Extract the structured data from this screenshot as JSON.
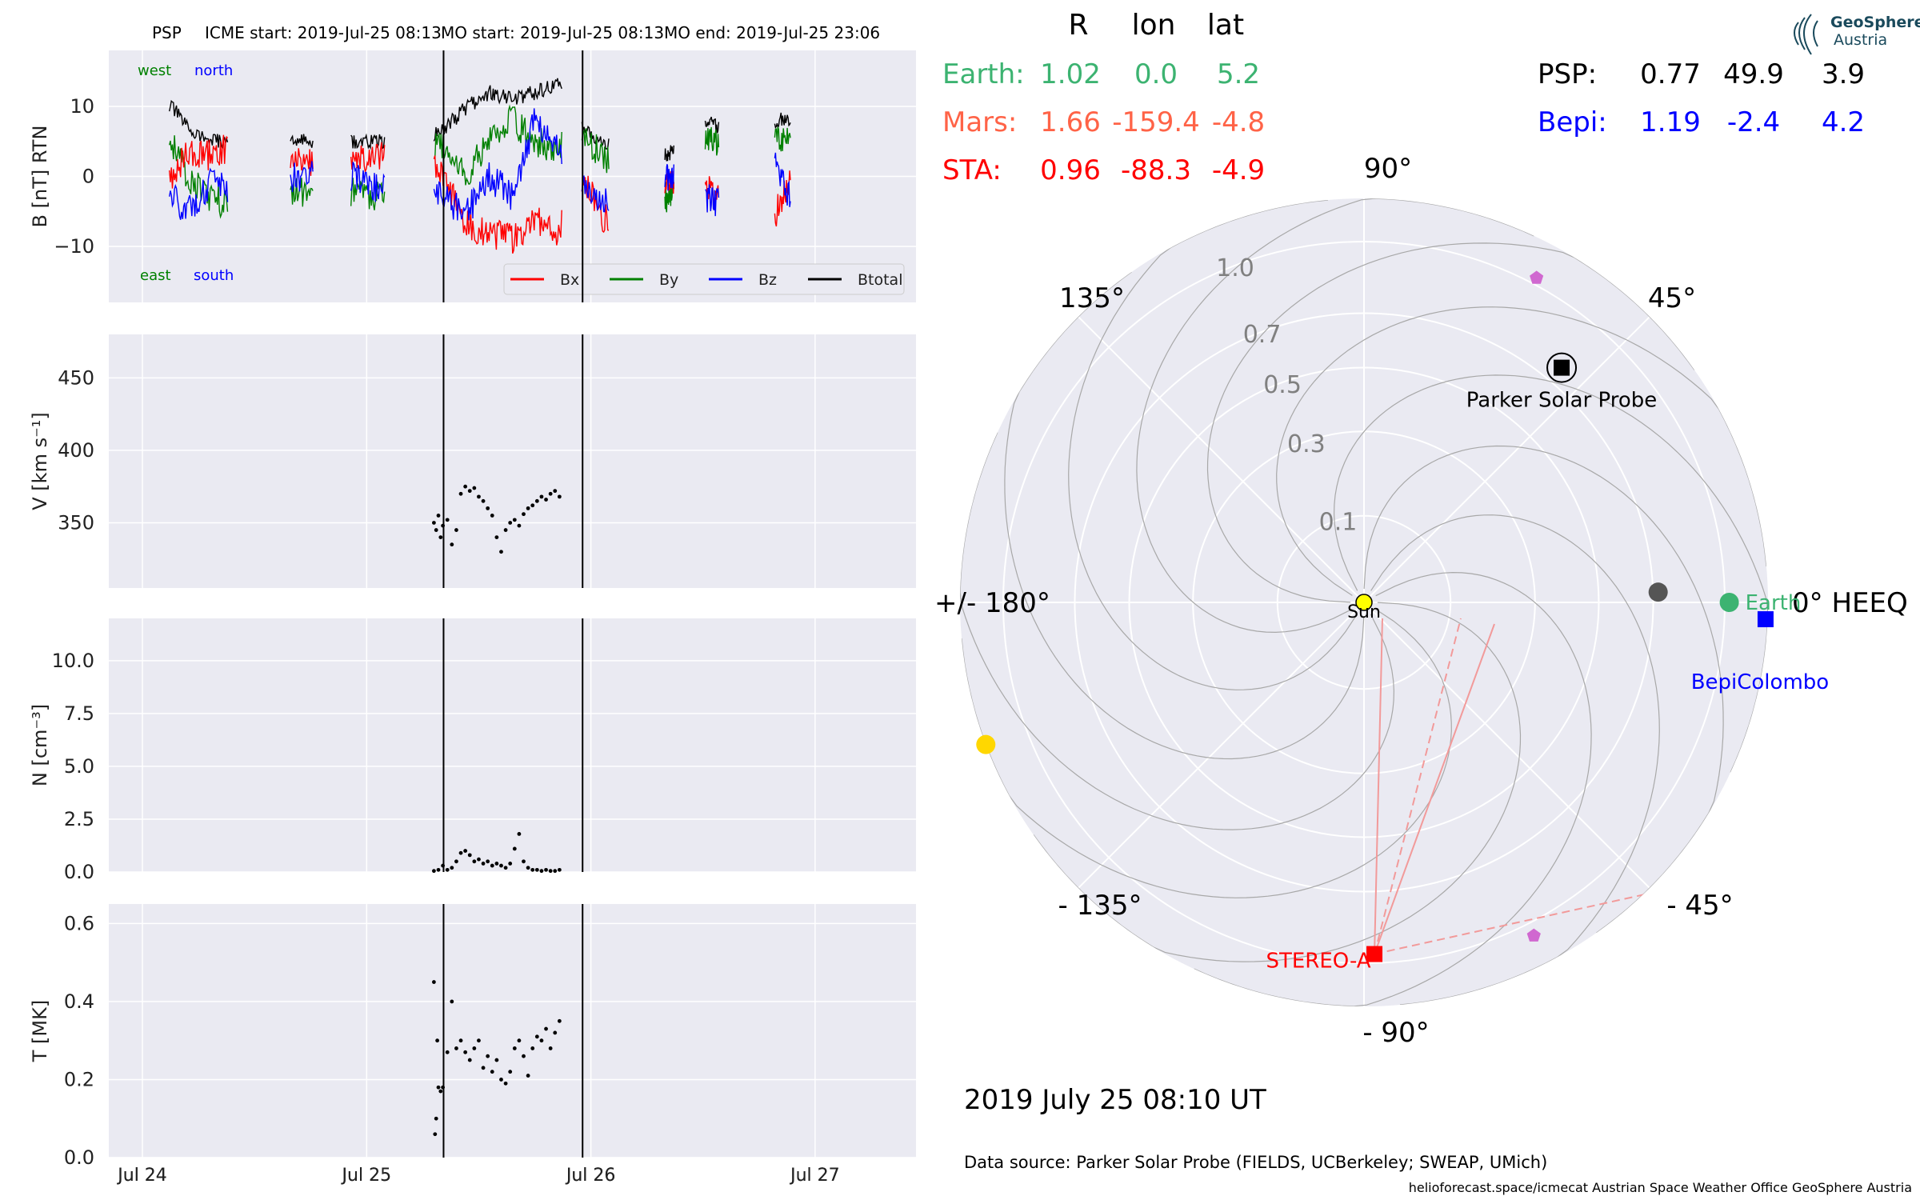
{
  "header": {
    "spacecraft": "PSP",
    "icme_start": "ICME start: 2019-Jul-25 08:13",
    "mo_start": "MO start: 2019-Jul-25 08:13",
    "mo_end": "MO end: 2019-Jul-25 23:06"
  },
  "logo": {
    "line1": "GeoSphere",
    "line2": "Austria"
  },
  "footer": {
    "date_label": "2019 July 25  08:10 UT",
    "data_source": "Data source: Parker Solar Probe (FIELDS, UCBerkeley; SWEAP, UMich)",
    "credits": "helioforecast.space/icmecat   Austrian Space Weather Office   GeoSphere Austria"
  },
  "positions_table": {
    "headers": [
      "R",
      "lon",
      "lat"
    ],
    "rows": [
      {
        "name": "Earth:",
        "R": "1.02",
        "lon": "0.0",
        "lat": "5.2",
        "color": "#3cb371"
      },
      {
        "name": "Mars:",
        "R": "1.66",
        "lon": "-159.4",
        "lat": "-4.8",
        "color": "#ff6347"
      },
      {
        "name": "STA:",
        "R": "0.96",
        "lon": "-88.3",
        "lat": "-4.9",
        "color": "#ff0000"
      },
      {
        "name": "PSP:",
        "R": "0.77",
        "lon": "49.9",
        "lat": "3.9",
        "color": "#000000"
      },
      {
        "name": "Bepi:",
        "R": "1.19",
        "lon": "-2.4",
        "lat": "4.2",
        "color": "#0000ff"
      }
    ]
  },
  "chart_data": [
    {
      "type": "line",
      "ylabel": "B [nT] RTN",
      "ylim": [
        -18,
        18
      ],
      "yticks": [
        -10,
        0,
        10
      ],
      "xlim": [
        -0.15,
        3.45
      ],
      "xticks": [
        0,
        1,
        2,
        3
      ],
      "xtick_labels": [
        "Jul 24",
        "Jul 25",
        "Jul 26",
        "Jul 27"
      ],
      "annotations": {
        "top_left": "west",
        "top_right": "north",
        "bottom_left": "east",
        "bottom_right": "south"
      },
      "event_lines_days": [
        1.343,
        1.963
      ],
      "legend": [
        "Bx",
        "By",
        "Bz",
        "Btotal"
      ],
      "series_colors": [
        "#ff0000",
        "#008000",
        "#0000ff",
        "#000000"
      ],
      "data_segments_days": [
        [
          0.12,
          0.38
        ],
        [
          0.66,
          0.76
        ],
        [
          0.93,
          1.08
        ],
        [
          1.3,
          1.87
        ],
        [
          1.96,
          2.08
        ],
        [
          2.33,
          2.37
        ],
        [
          2.51,
          2.57
        ],
        [
          2.82,
          2.89
        ]
      ],
      "series": [
        {
          "name": "Btotal",
          "x": [
            0.13,
            0.2,
            0.3,
            0.38,
            0.68,
            0.75,
            0.95,
            1.05,
            1.32,
            1.45,
            1.55,
            1.65,
            1.75,
            1.85,
            1.97,
            2.05,
            2.34,
            2.52,
            2.56,
            2.83,
            2.88
          ],
          "y": [
            10,
            7,
            5,
            5,
            5,
            5,
            5,
            5,
            6,
            10,
            12,
            11,
            12,
            13,
            7,
            5,
            3,
            8,
            7,
            8,
            8
          ]
        },
        {
          "name": "Bx",
          "x": [
            0.13,
            0.2,
            0.3,
            0.38,
            0.68,
            0.75,
            0.95,
            1.05,
            1.32,
            1.45,
            1.55,
            1.65,
            1.75,
            1.85,
            1.97,
            2.05,
            2.34,
            2.52,
            2.56,
            2.83,
            2.88
          ],
          "y": [
            0,
            3,
            3,
            4,
            3,
            2,
            2,
            3,
            1,
            -7,
            -8,
            -9,
            -6,
            -8,
            0,
            -6,
            -1,
            -2,
            -3,
            -5,
            -1
          ]
        },
        {
          "name": "By",
          "x": [
            0.13,
            0.2,
            0.3,
            0.38,
            0.68,
            0.75,
            0.95,
            1.05,
            1.32,
            1.45,
            1.55,
            1.65,
            1.75,
            1.85,
            1.97,
            2.05,
            2.34,
            2.52,
            2.56,
            2.83,
            2.88
          ],
          "y": [
            5,
            0,
            -3,
            -4,
            -2,
            -3,
            -2,
            -3,
            5,
            0,
            6,
            8,
            5,
            4,
            6,
            3,
            -3,
            6,
            5,
            5,
            6
          ]
        },
        {
          "name": "Bz",
          "x": [
            0.13,
            0.2,
            0.3,
            0.38,
            0.68,
            0.75,
            0.95,
            1.05,
            1.32,
            1.45,
            1.55,
            1.65,
            1.75,
            1.85,
            1.97,
            2.05,
            2.34,
            2.52,
            2.56,
            2.83,
            2.88
          ],
          "y": [
            -3,
            -5,
            -1,
            -2,
            0,
            0,
            0,
            -2,
            -3,
            -5,
            0,
            -3,
            8,
            5,
            -2,
            -3,
            0,
            -3,
            -4,
            2,
            -3
          ]
        }
      ]
    },
    {
      "type": "scatter",
      "ylabel": "V [km s⁻¹]",
      "ylim": [
        305,
        480
      ],
      "yticks": [
        350,
        400,
        450
      ],
      "xlim": [
        -0.15,
        3.45
      ],
      "xticks": [
        0,
        1,
        2,
        3
      ],
      "event_lines_days": [
        1.343,
        1.963
      ],
      "series": [
        {
          "name": "V",
          "x": [
            1.3,
            1.31,
            1.32,
            1.33,
            1.34,
            1.36,
            1.38,
            1.4,
            1.42,
            1.44,
            1.46,
            1.48,
            1.5,
            1.52,
            1.54,
            1.56,
            1.58,
            1.6,
            1.62,
            1.64,
            1.66,
            1.68,
            1.7,
            1.72,
            1.74,
            1.76,
            1.78,
            1.8,
            1.82,
            1.84,
            1.86
          ],
          "y": [
            350,
            345,
            355,
            340,
            348,
            352,
            335,
            345,
            370,
            375,
            372,
            374,
            368,
            365,
            360,
            355,
            340,
            330,
            345,
            350,
            352,
            348,
            356,
            360,
            362,
            365,
            368,
            366,
            370,
            372,
            368
          ]
        }
      ]
    },
    {
      "type": "scatter",
      "ylabel": "N [cm⁻³]",
      "ylim": [
        0,
        12
      ],
      "yticks": [
        0.0,
        2.5,
        5.0,
        7.5,
        10.0
      ],
      "ytick_labels": [
        "0.0",
        "2.5",
        "5.0",
        "7.5",
        "10.0"
      ],
      "xlim": [
        -0.15,
        3.45
      ],
      "xticks": [
        0,
        1,
        2,
        3
      ],
      "event_lines_days": [
        1.343,
        1.963
      ],
      "series": [
        {
          "name": "N",
          "x": [
            1.3,
            1.32,
            1.34,
            1.36,
            1.38,
            1.4,
            1.42,
            1.44,
            1.46,
            1.48,
            1.5,
            1.52,
            1.54,
            1.56,
            1.58,
            1.6,
            1.62,
            1.64,
            1.66,
            1.68,
            1.7,
            1.72,
            1.74,
            1.76,
            1.78,
            1.8,
            1.82,
            1.84,
            1.86
          ],
          "y": [
            0.05,
            0.1,
            0.3,
            0.1,
            0.2,
            0.5,
            0.9,
            1.0,
            0.8,
            0.5,
            0.6,
            0.4,
            0.5,
            0.3,
            0.4,
            0.3,
            0.2,
            0.4,
            1.1,
            1.8,
            0.5,
            0.2,
            0.1,
            0.1,
            0.05,
            0.1,
            0.05,
            0.05,
            0.1
          ]
        }
      ]
    },
    {
      "type": "scatter",
      "ylabel": "T [MK]",
      "ylim": [
        0,
        0.65
      ],
      "yticks": [
        0.0,
        0.2,
        0.4,
        0.6
      ],
      "ytick_labels": [
        "0.0",
        "0.2",
        "0.4",
        "0.6"
      ],
      "xlim": [
        -0.15,
        3.45
      ],
      "xticks": [
        0,
        1,
        2,
        3
      ],
      "xtick_labels": [
        "Jul 24",
        "Jul 25",
        "Jul 26",
        "Jul 27"
      ],
      "event_lines_days": [
        1.343,
        1.963
      ],
      "series": [
        {
          "name": "T",
          "x": [
            1.3,
            1.305,
            1.31,
            1.315,
            1.32,
            1.33,
            1.34,
            1.36,
            1.38,
            1.4,
            1.42,
            1.44,
            1.46,
            1.48,
            1.5,
            1.52,
            1.54,
            1.56,
            1.58,
            1.6,
            1.62,
            1.64,
            1.66,
            1.68,
            1.7,
            1.72,
            1.74,
            1.76,
            1.78,
            1.8,
            1.82,
            1.84,
            1.86
          ],
          "y": [
            0.45,
            0.06,
            0.1,
            0.3,
            0.18,
            0.17,
            0.18,
            0.27,
            0.4,
            0.28,
            0.3,
            0.27,
            0.25,
            0.28,
            0.3,
            0.23,
            0.26,
            0.22,
            0.25,
            0.2,
            0.19,
            0.22,
            0.28,
            0.3,
            0.26,
            0.21,
            0.28,
            0.31,
            0.3,
            0.33,
            0.28,
            0.32,
            0.35
          ]
        }
      ]
    },
    {
      "type": "polar",
      "radial_labels": [
        "0.1",
        "0.3",
        "0.5",
        "0.7",
        "1.0"
      ],
      "angle_labels": [
        "0° HEEQ",
        "45°",
        "90°",
        "135°",
        "+/- 180°",
        "- 135°",
        "- 90°",
        "- 45°"
      ],
      "bodies": [
        {
          "name": "Sun",
          "r": 0.0,
          "lon": 0,
          "color": "#ffff00",
          "marker": "circle",
          "label": "Sun",
          "label_color": "#000000"
        },
        {
          "name": "Earth",
          "r": 1.02,
          "lon": 0.0,
          "color": "#3cb371",
          "marker": "circle",
          "label": "Earth",
          "label_color": "#3cb371"
        },
        {
          "name": "Mars",
          "r": 1.66,
          "lon": -159.4,
          "color": "#ffd700",
          "marker": "circle",
          "label": "",
          "label_color": ""
        },
        {
          "name": "STEREO-A",
          "r": 0.96,
          "lon": -88.3,
          "color": "#ff0000",
          "marker": "square",
          "label": "STEREO-A",
          "label_color": "#ff0000"
        },
        {
          "name": "Parker Solar Probe",
          "r": 0.77,
          "lon": 49.9,
          "color": "#000000",
          "marker": "psp",
          "label": "Parker Solar Probe",
          "label_color": "#000000"
        },
        {
          "name": "BepiColombo",
          "r": 1.19,
          "lon": -2.4,
          "color": "#0000ff",
          "marker": "square",
          "label": "BepiColombo",
          "label_color": "#0000ff"
        },
        {
          "name": "Venus",
          "r": 0.72,
          "lon": 2.0,
          "color": "#555555",
          "marker": "circle",
          "label": "",
          "label_color": ""
        },
        {
          "name": "Solar Orbiter",
          "r": 1.03,
          "lon": 62.0,
          "color": "#d068d0",
          "marker": "pentagon",
          "label": "",
          "label_color": ""
        },
        {
          "name": "Juno",
          "r": 1.06,
          "lon": -63.0,
          "color": "#d068d0",
          "marker": "pentagon",
          "label": "",
          "label_color": ""
        }
      ]
    }
  ]
}
